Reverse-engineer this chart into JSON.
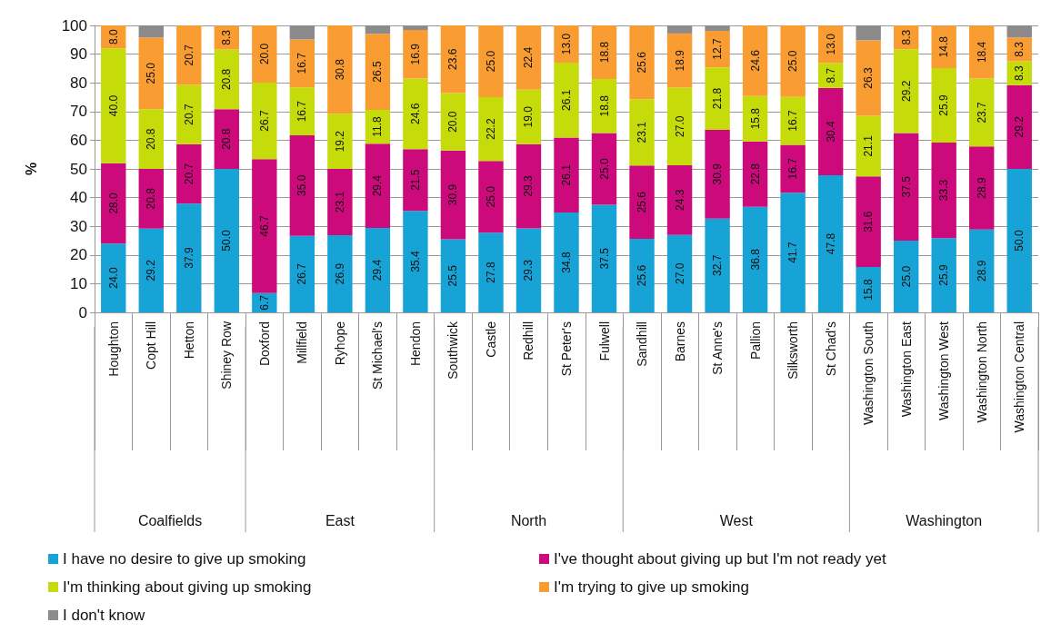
{
  "chart_data": {
    "type": "bar",
    "stacked": true,
    "ylabel": "%",
    "ylim": [
      0,
      100
    ],
    "yticks": [
      0,
      10,
      20,
      30,
      40,
      50,
      60,
      70,
      80,
      90,
      100
    ],
    "grid": "y",
    "legend": "bottom",
    "categories": [
      "Houghton",
      "Copt Hill",
      "Hetton",
      "Shiney Row",
      "Doxford",
      "Millfield",
      "Ryhope",
      "St Michael's",
      "Hendon",
      "Southwick",
      "Castle",
      "Redhill",
      "St Peter's",
      "Fulwell",
      "Sandhill",
      "Barnes",
      "St Anne's",
      "Pallion",
      "Silksworth",
      "St Chad's",
      "Washington South",
      "Washington East",
      "Washington West",
      "Washington North",
      "Washington Central"
    ],
    "series": [
      {
        "name": "I have no desire to give up smoking",
        "color": "#17a3d6",
        "values": [
          24.0,
          29.2,
          37.9,
          50.0,
          6.7,
          26.7,
          26.9,
          29.4,
          35.4,
          25.5,
          27.8,
          29.3,
          34.8,
          37.5,
          25.6,
          27.0,
          32.7,
          36.8,
          41.7,
          47.8,
          15.8,
          25.0,
          25.9,
          28.9,
          50.0
        ],
        "value_labels": [
          "24.0",
          "29.2",
          "37.9",
          "50.0",
          "6.7",
          "26.7",
          "26.9",
          "29.4",
          "35.4",
          "25.5",
          "27.8",
          "29.3",
          "34.8",
          "37.5",
          "25.6",
          "27.0",
          "32.7",
          "36.8",
          "41.7",
          "47.8",
          "15.8",
          "25.0",
          "25.9",
          "28.9",
          "50.0"
        ]
      },
      {
        "name": "I've thought about giving up but I'm not ready yet",
        "color": "#cc0a7c",
        "values": [
          28.0,
          20.8,
          20.7,
          20.8,
          46.7,
          35.0,
          23.1,
          29.4,
          21.5,
          30.9,
          25.0,
          29.3,
          26.1,
          25.0,
          25.6,
          24.3,
          30.9,
          22.8,
          16.7,
          30.4,
          31.6,
          37.5,
          33.3,
          28.9,
          29.2
        ],
        "value_labels": [
          "28.0",
          "20.8",
          "20.7",
          "20.8",
          "46.7",
          "35.0",
          "23.1",
          "29.4",
          "21.5",
          "30.9",
          "25.0",
          "29.3",
          "26.1",
          "25.0",
          "25.6",
          "24.3",
          "30.9",
          "22.8",
          "16.7",
          "30.4",
          "31.6",
          "37.5",
          "33.3",
          "28.9",
          "29.2"
        ]
      },
      {
        "name": "I'm thinking about giving up smoking",
        "color": "#c5dc0a",
        "values": [
          40.0,
          20.8,
          20.7,
          20.8,
          26.7,
          16.7,
          19.2,
          11.8,
          24.6,
          20.0,
          22.2,
          19.0,
          26.1,
          18.8,
          23.1,
          27.0,
          21.8,
          15.8,
          16.7,
          8.7,
          21.1,
          29.2,
          25.9,
          23.7,
          8.3
        ],
        "value_labels": [
          "40.0",
          "20.8",
          "20.7",
          "20.8",
          "26.7",
          "16.7",
          "19.2",
          "11.8",
          "24.6",
          "20.0",
          "22.2",
          "19.0",
          "26.1",
          "18.8",
          "23.1",
          "27.0",
          "21.8",
          "15.8",
          "16.7",
          "8.7",
          "21.1",
          "29.2",
          "25.9",
          "23.7",
          "8.3"
        ]
      },
      {
        "name": "I'm trying to give up smoking",
        "color": "#f99d33",
        "values": [
          8.0,
          25.0,
          20.7,
          8.3,
          20.0,
          16.7,
          30.8,
          26.5,
          16.9,
          23.6,
          25.0,
          22.4,
          13.0,
          18.8,
          25.6,
          18.9,
          12.7,
          24.6,
          25.0,
          13.0,
          26.3,
          8.3,
          14.8,
          18.4,
          8.3
        ],
        "value_labels": [
          "8.0",
          "25.0",
          "20.7",
          "8.3",
          "20.0",
          "16.7",
          "30.8",
          "26.5",
          "16.9",
          "23.6",
          "25.0",
          "22.4",
          "13.0",
          "18.8",
          "25.6",
          "18.9",
          "12.7",
          "24.6",
          "25.0",
          "13.0",
          "26.3",
          "8.3",
          "14.8",
          "18.4",
          "8.3"
        ]
      },
      {
        "name": "I don't know",
        "color": "#8c8a8a",
        "values": [
          null,
          4.2,
          null,
          null,
          null,
          4.9,
          null,
          2.9,
          1.5,
          null,
          null,
          null,
          null,
          null,
          null,
          2.8,
          1.9,
          null,
          null,
          null,
          5.2,
          null,
          null,
          null,
          4.2
        ]
      }
    ],
    "annotations": [
      "Coalfields",
      "East",
      "North",
      "West",
      "Washington"
    ]
  }
}
